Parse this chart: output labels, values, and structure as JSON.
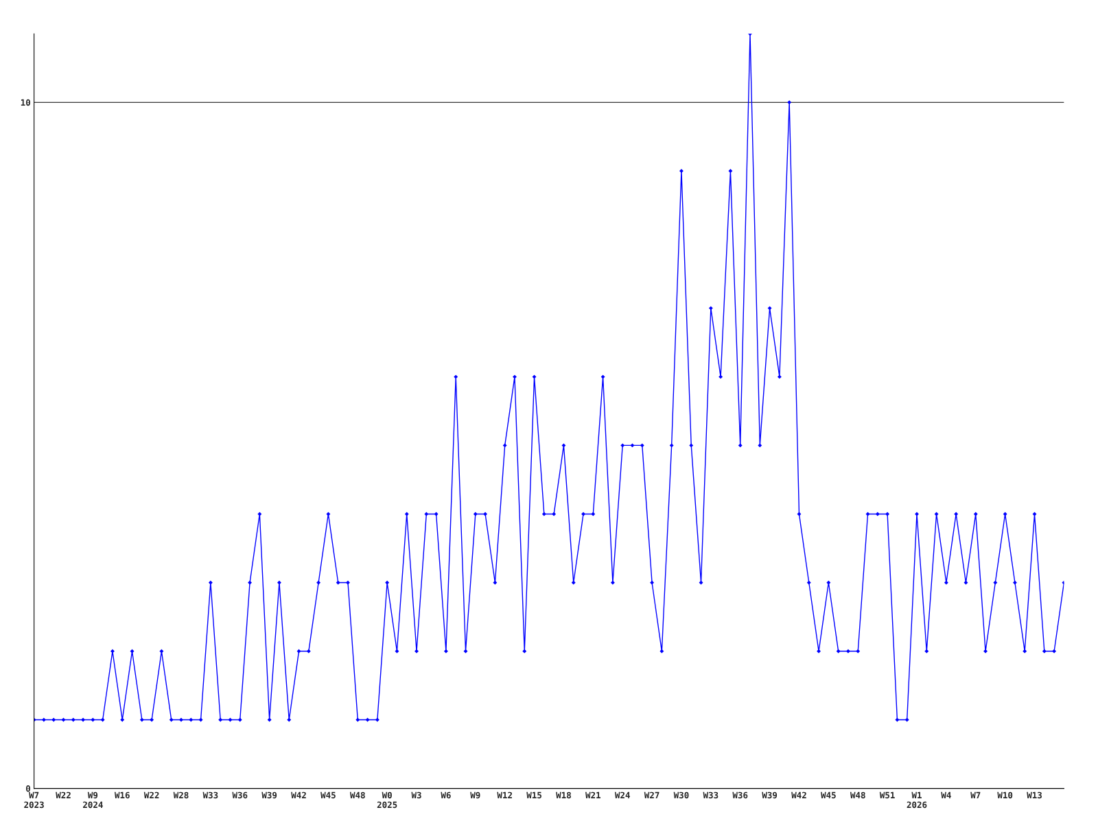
{
  "chart_data": {
    "type": "line",
    "categories": [
      "W7\n2023",
      null,
      null,
      "W22",
      null,
      null,
      "W9\n2024",
      null,
      null,
      "W16",
      null,
      null,
      "W22",
      null,
      null,
      "W28",
      null,
      null,
      "W33",
      null,
      null,
      "W36",
      null,
      null,
      "W39",
      null,
      null,
      "W42",
      null,
      null,
      "W45",
      null,
      null,
      "W48",
      null,
      null,
      "W0\n2025",
      null,
      null,
      "W3",
      null,
      null,
      "W6",
      null,
      null,
      "W9",
      null,
      null,
      "W12",
      null,
      null,
      "W15",
      null,
      null,
      "W18",
      null,
      null,
      "W21",
      null,
      null,
      "W24",
      null,
      null,
      "W27",
      null,
      null,
      "W30",
      null,
      null,
      "W33",
      null,
      null,
      "W36",
      null,
      null,
      "W39",
      null,
      null,
      "W42",
      null,
      null,
      "W45",
      null,
      null,
      "W48",
      null,
      null,
      "W51",
      null,
      null,
      "W1\n2026",
      null,
      null,
      "W4",
      null,
      null,
      "W7",
      null,
      null,
      "W10",
      null,
      null,
      "W13",
      null,
      null,
      null
    ],
    "series": [
      {
        "color": "#0000ff",
        "values": [
          1,
          1,
          1,
          1,
          1,
          1,
          1,
          1,
          2,
          1,
          2,
          1,
          1,
          2,
          1,
          1,
          1,
          1,
          3,
          1,
          1,
          1,
          3,
          4,
          1,
          3,
          1,
          2,
          2,
          3,
          4,
          3,
          3,
          1,
          1,
          1,
          3,
          2,
          4,
          2,
          4,
          4,
          2,
          6,
          2,
          4,
          4,
          3,
          5,
          6,
          2,
          6,
          4,
          4,
          5,
          3,
          4,
          4,
          6,
          3,
          5,
          5,
          5,
          3,
          2,
          5,
          9,
          5,
          3,
          7,
          6,
          9,
          5,
          11,
          5,
          7,
          6,
          10,
          4,
          3,
          2,
          3,
          2,
          2,
          2,
          4,
          4,
          4,
          1,
          1,
          4,
          2,
          4,
          3,
          4,
          3,
          4,
          2,
          3,
          4,
          3,
          2,
          4,
          2,
          2,
          3
        ]
      }
    ],
    "ylim": [
      0,
      11
    ],
    "yticks": [
      0,
      10
    ],
    "grid": "y",
    "marker": "diamond",
    "line_style": "solid"
  }
}
